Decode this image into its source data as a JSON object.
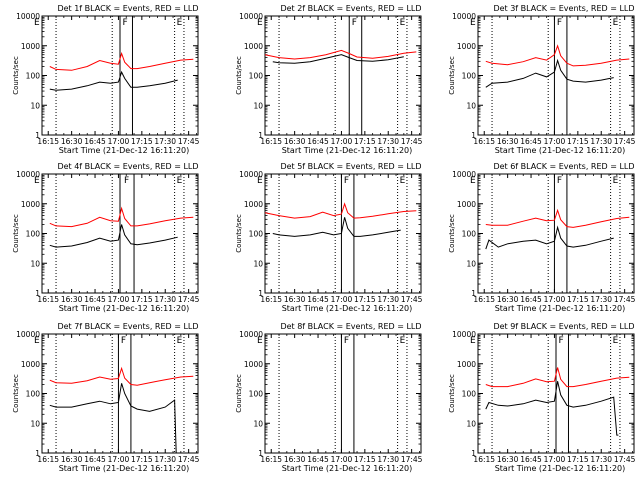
{
  "common": {
    "xlabel": "Start Time (21-Dec-12 16:11:20)",
    "ylabel": "Counts/sec",
    "x_ticks": [
      "16:15",
      "16:30",
      "16:45",
      "17:00",
      "17:15",
      "17:30",
      "17:45"
    ],
    "y_ticks": [
      "1",
      "10",
      "100",
      "1000",
      "10000"
    ],
    "colors": {
      "events": "#000000",
      "lld": "#ff0000"
    }
  },
  "chart_data": [
    {
      "type": "line",
      "title": "Det 1f BLACK = Events, RED = LLD",
      "flags": [
        "E",
        "F",
        "E"
      ],
      "dotted_lines": [
        "16:20",
        "16:56",
        "17:36",
        "17:42"
      ],
      "solid_lines": [
        "17:01",
        "17:09"
      ],
      "y_log": true,
      "ylim": [
        1,
        10000
      ],
      "series": [
        {
          "name": "Events",
          "color": "#000000",
          "x": [
            "16:16",
            "16:20",
            "16:30",
            "16:40",
            "16:48",
            "16:55",
            "17:00",
            "17:02",
            "17:04",
            "17:08",
            "17:12",
            "17:20",
            "17:30",
            "17:38"
          ],
          "y": [
            35,
            32,
            35,
            45,
            60,
            55,
            60,
            130,
            80,
            40,
            40,
            45,
            55,
            70
          ]
        },
        {
          "name": "LLD",
          "color": "#ff0000",
          "x": [
            "16:16",
            "16:20",
            "16:30",
            "16:40",
            "16:48",
            "16:55",
            "17:00",
            "17:02",
            "17:04",
            "17:08",
            "17:12",
            "17:20",
            "17:30",
            "17:40",
            "17:48"
          ],
          "y": [
            200,
            160,
            150,
            200,
            320,
            260,
            240,
            550,
            280,
            170,
            170,
            200,
            260,
            330,
            350
          ]
        }
      ]
    },
    {
      "type": "line",
      "title": "Det 2f BLACK = Events, RED = LLD",
      "flags": [
        "E",
        "F",
        "E"
      ],
      "dotted_lines": [
        "16:20",
        "16:56",
        "17:36",
        "17:42"
      ],
      "solid_lines": [
        "17:05",
        "17:13"
      ],
      "y_log": true,
      "ylim": [
        1,
        10000
      ],
      "series": [
        {
          "name": "Events",
          "color": "#000000",
          "x": [
            "16:16",
            "16:20",
            "16:30",
            "16:40",
            "16:50",
            "17:00",
            "17:05",
            "17:10",
            "17:20",
            "17:30",
            "17:40"
          ],
          "y": [
            290,
            270,
            260,
            290,
            380,
            500,
            400,
            320,
            300,
            340,
            430
          ]
        },
        {
          "name": "LLD",
          "color": "#ff0000",
          "x": [
            "16:11",
            "16:20",
            "16:30",
            "16:40",
            "16:50",
            "17:00",
            "17:05",
            "17:10",
            "17:20",
            "17:30",
            "17:40",
            "17:48"
          ],
          "y": [
            500,
            400,
            360,
            400,
            500,
            700,
            550,
            420,
            380,
            440,
            560,
            620
          ]
        }
      ]
    },
    {
      "type": "line",
      "title": "Det 3f BLACK = Events, RED = LLD",
      "flags": [
        "E",
        "F",
        "E"
      ],
      "dotted_lines": [
        "16:20",
        "16:56",
        "17:36",
        "17:42"
      ],
      "solid_lines": [
        "17:00",
        "17:08"
      ],
      "y_log": true,
      "ylim": [
        1,
        10000
      ],
      "series": [
        {
          "name": "Events",
          "color": "#000000",
          "x": [
            "16:16",
            "16:20",
            "16:30",
            "16:40",
            "16:48",
            "16:55",
            "17:00",
            "17:02",
            "17:04",
            "17:08",
            "17:12",
            "17:20",
            "17:30",
            "17:38"
          ],
          "y": [
            40,
            55,
            60,
            80,
            120,
            90,
            130,
            320,
            150,
            75,
            65,
            60,
            70,
            85
          ]
        },
        {
          "name": "LLD",
          "color": "#ff0000",
          "x": [
            "16:16",
            "16:20",
            "16:30",
            "16:40",
            "16:48",
            "16:55",
            "17:00",
            "17:02",
            "17:04",
            "17:08",
            "17:12",
            "17:20",
            "17:30",
            "17:40",
            "17:48"
          ],
          "y": [
            300,
            260,
            230,
            290,
            400,
            330,
            500,
            1000,
            460,
            260,
            210,
            220,
            260,
            330,
            360
          ]
        }
      ]
    },
    {
      "type": "line",
      "title": "Det 4f BLACK = Events, RED = LLD",
      "flags": [
        "E",
        "F",
        "E"
      ],
      "dotted_lines": [
        "16:20",
        "16:56",
        "17:36",
        "17:42"
      ],
      "solid_lines": [
        "17:01",
        "17:10"
      ],
      "y_log": true,
      "ylim": [
        1,
        10000
      ],
      "series": [
        {
          "name": "Events",
          "color": "#000000",
          "x": [
            "16:16",
            "16:20",
            "16:30",
            "16:40",
            "16:48",
            "16:55",
            "17:00",
            "17:02",
            "17:04",
            "17:08",
            "17:12",
            "17:20",
            "17:30",
            "17:38"
          ],
          "y": [
            40,
            35,
            38,
            50,
            70,
            55,
            60,
            200,
            90,
            45,
            42,
            48,
            60,
            75
          ]
        },
        {
          "name": "LLD",
          "color": "#ff0000",
          "x": [
            "16:16",
            "16:20",
            "16:30",
            "16:40",
            "16:48",
            "16:55",
            "17:00",
            "17:02",
            "17:04",
            "17:08",
            "17:12",
            "17:20",
            "17:30",
            "17:40",
            "17:48"
          ],
          "y": [
            220,
            180,
            170,
            220,
            350,
            270,
            260,
            700,
            320,
            180,
            180,
            210,
            270,
            330,
            350
          ]
        }
      ]
    },
    {
      "type": "line",
      "title": "Det 5f BLACK = Events, RED = LLD",
      "flags": [
        "E",
        "F",
        "E"
      ],
      "dotted_lines": [
        "16:20",
        "16:56",
        "17:36",
        "17:42"
      ],
      "solid_lines": [
        "17:00",
        "17:08"
      ],
      "y_log": true,
      "ylim": [
        1,
        10000
      ],
      "series": [
        {
          "name": "Events",
          "color": "#000000",
          "x": [
            "16:16",
            "16:20",
            "16:30",
            "16:40",
            "16:48",
            "16:55",
            "17:00",
            "17:02",
            "17:04",
            "17:08",
            "17:12",
            "17:20",
            "17:30",
            "17:38"
          ],
          "y": [
            100,
            90,
            80,
            90,
            110,
            90,
            100,
            350,
            150,
            80,
            80,
            90,
            110,
            130
          ]
        },
        {
          "name": "LLD",
          "color": "#ff0000",
          "x": [
            "16:11",
            "16:20",
            "16:30",
            "16:40",
            "16:48",
            "16:55",
            "17:00",
            "17:02",
            "17:04",
            "17:08",
            "17:12",
            "17:20",
            "17:30",
            "17:40",
            "17:48"
          ],
          "y": [
            500,
            400,
            330,
            370,
            520,
            400,
            450,
            1000,
            500,
            330,
            340,
            380,
            460,
            550,
            580
          ]
        }
      ]
    },
    {
      "type": "line",
      "title": "Det 6f BLACK = Events, RED = LLD",
      "flags": [
        "E",
        "F",
        "E"
      ],
      "dotted_lines": [
        "16:20",
        "16:56",
        "17:36",
        "17:42"
      ],
      "solid_lines": [
        "17:00",
        "17:08"
      ],
      "y_log": true,
      "ylim": [
        1,
        10000
      ],
      "series": [
        {
          "name": "Events",
          "color": "#000000",
          "x": [
            "16:16",
            "16:18",
            "16:24",
            "16:30",
            "16:40",
            "16:48",
            "16:55",
            "17:00",
            "17:02",
            "17:04",
            "17:08",
            "17:12",
            "17:20",
            "17:30",
            "17:38"
          ],
          "y": [
            30,
            60,
            35,
            45,
            55,
            60,
            45,
            55,
            160,
            70,
            38,
            35,
            40,
            55,
            70
          ]
        },
        {
          "name": "LLD",
          "color": "#ff0000",
          "x": [
            "16:16",
            "16:20",
            "16:30",
            "16:40",
            "16:48",
            "16:55",
            "17:00",
            "17:02",
            "17:04",
            "17:08",
            "17:12",
            "17:20",
            "17:30",
            "17:40",
            "17:48"
          ],
          "y": [
            200,
            190,
            190,
            260,
            330,
            270,
            280,
            600,
            290,
            170,
            160,
            190,
            250,
            320,
            350
          ]
        }
      ]
    },
    {
      "type": "line",
      "title": "Det 7f BLACK = Events, RED = LLD",
      "flags": [
        "E",
        "F",
        "E"
      ],
      "dotted_lines": [
        "16:20",
        "16:56",
        "17:36",
        "17:42"
      ],
      "solid_lines": [
        "17:00",
        "17:08"
      ],
      "y_log": true,
      "ylim": [
        1,
        10000
      ],
      "series": [
        {
          "name": "Events",
          "color": "#000000",
          "x": [
            "16:16",
            "16:20",
            "16:30",
            "16:40",
            "16:48",
            "16:55",
            "17:00",
            "17:02",
            "17:04",
            "17:08",
            "17:12",
            "17:20",
            "17:30",
            "17:36",
            "17:37",
            "17:38"
          ],
          "y": [
            40,
            35,
            35,
            45,
            55,
            45,
            50,
            220,
            100,
            38,
            30,
            25,
            35,
            60,
            1,
            1
          ]
        },
        {
          "name": "LLD",
          "color": "#ff0000",
          "x": [
            "16:16",
            "16:20",
            "16:30",
            "16:40",
            "16:48",
            "16:55",
            "17:00",
            "17:02",
            "17:04",
            "17:08",
            "17:12",
            "17:20",
            "17:30",
            "17:40",
            "17:48"
          ],
          "y": [
            280,
            230,
            220,
            270,
            360,
            300,
            320,
            700,
            330,
            200,
            190,
            230,
            290,
            360,
            380
          ]
        }
      ]
    },
    {
      "type": "line",
      "title": "Det 8f BLACK = Events, RED = LLD",
      "flags": [
        "E",
        "F",
        "E"
      ],
      "dotted_lines": [
        "16:20",
        "16:56",
        "17:36",
        "17:42"
      ],
      "solid_lines": [
        "17:00",
        "17:08"
      ],
      "y_log": true,
      "ylim": [
        1,
        10000
      ],
      "series": []
    },
    {
      "type": "line",
      "title": "Det 9f BLACK = Events, RED = LLD",
      "flags": [
        "E",
        "F",
        "E"
      ],
      "dotted_lines": [
        "16:20",
        "16:56",
        "17:36",
        "17:42"
      ],
      "solid_lines": [
        "17:01",
        "17:09"
      ],
      "y_log": true,
      "ylim": [
        1,
        10000
      ],
      "series": [
        {
          "name": "Events",
          "color": "#000000",
          "x": [
            "16:16",
            "16:18",
            "16:24",
            "16:30",
            "16:40",
            "16:48",
            "16:55",
            "17:00",
            "17:02",
            "17:04",
            "17:08",
            "17:12",
            "17:20",
            "17:30",
            "17:38",
            "17:40",
            "17:41"
          ],
          "y": [
            30,
            50,
            40,
            38,
            45,
            60,
            50,
            55,
            260,
            90,
            40,
            35,
            40,
            55,
            75,
            4,
            4
          ]
        },
        {
          "name": "LLD",
          "color": "#ff0000",
          "x": [
            "16:16",
            "16:20",
            "16:30",
            "16:40",
            "16:48",
            "16:55",
            "17:00",
            "17:02",
            "17:04",
            "17:08",
            "17:12",
            "17:20",
            "17:30",
            "17:40",
            "17:48"
          ],
          "y": [
            200,
            170,
            170,
            220,
            310,
            250,
            260,
            750,
            300,
            170,
            170,
            200,
            260,
            330,
            350
          ]
        }
      ]
    }
  ]
}
